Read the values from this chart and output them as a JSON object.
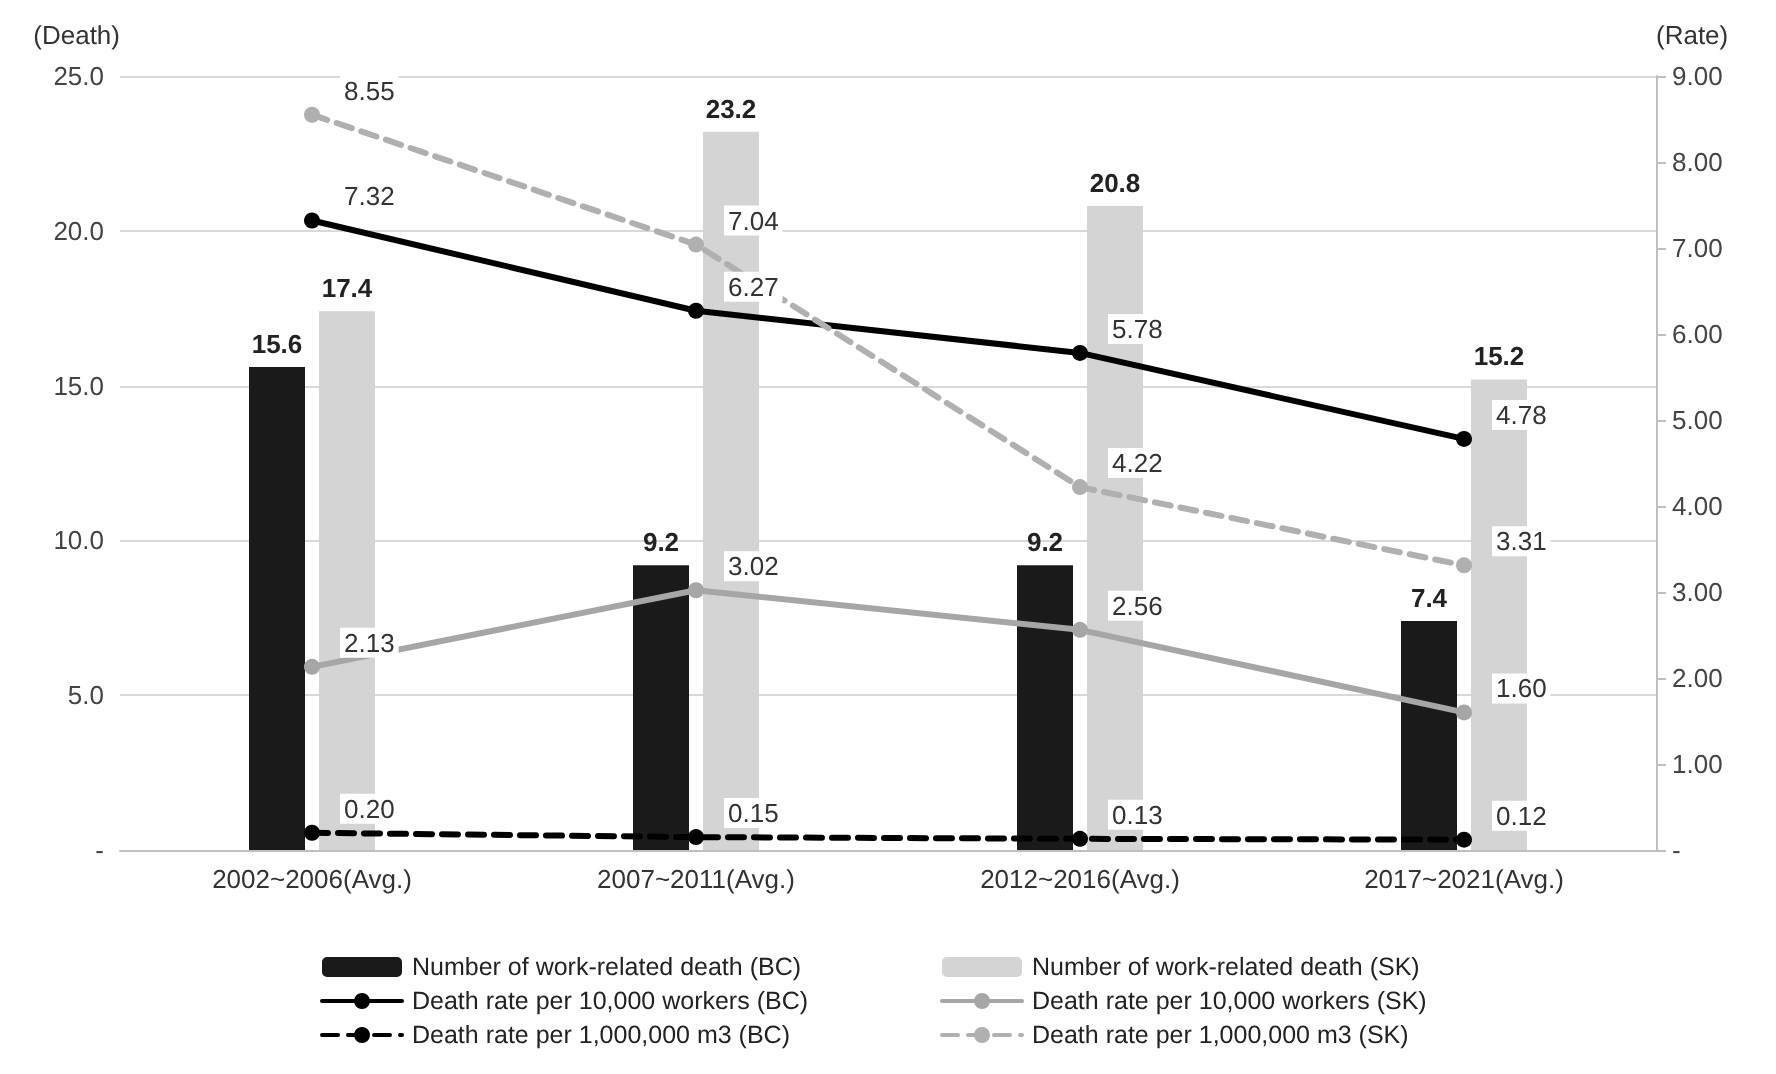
{
  "chart_data": {
    "type": "bar",
    "ylabel": "(Death)",
    "y2label": "(Rate)",
    "categories": [
      "2002~2006(Avg.)",
      "2007~2011(Avg.)",
      "2012~2016(Avg.)",
      "2017~2021(Avg.)"
    ],
    "series": [
      {
        "name": "Number of work-related death (BC)",
        "color": "#1a1a1a",
        "values": [
          15.6,
          9.2,
          9.2,
          7.4
        ],
        "value_labels": [
          "15.6",
          "9.2",
          "9.2",
          "7.4"
        ]
      },
      {
        "name": "Number of work-related death (SK)",
        "color": "#d4d4d4",
        "values": [
          17.4,
          23.2,
          20.8,
          15.2
        ],
        "value_labels": [
          "17.4",
          "23.2",
          "20.8",
          "15.2"
        ]
      },
      {
        "name": "Death rate per 10,000 workers (BC)",
        "type": "line",
        "axis": "y2",
        "color": "#000000",
        "line_style": "solid",
        "values": [
          7.32,
          6.27,
          5.78,
          4.78
        ],
        "value_labels": [
          "7.32",
          "6.27",
          "5.78",
          "4.78"
        ]
      },
      {
        "name": "Death rate per 10,000 workers (SK)",
        "type": "line",
        "axis": "y2",
        "color": "#a6a6a6",
        "line_style": "solid",
        "values": [
          2.13,
          3.02,
          2.56,
          1.6
        ],
        "value_labels": [
          "2.13",
          "3.02",
          "2.56",
          "1.60"
        ]
      },
      {
        "name": "Death rate per 1,000,000 m3 (BC)",
        "type": "line",
        "axis": "y2",
        "color": "#000000",
        "line_style": "dashed",
        "values": [
          0.2,
          0.15,
          0.13,
          0.12
        ],
        "value_labels": [
          "0.20",
          "0.15",
          "0.13",
          "0.12"
        ]
      },
      {
        "name": "Death rate per 1,000,000 m3 (SK)",
        "type": "line",
        "axis": "y2",
        "color": "#b0b0b0",
        "line_style": "dashed",
        "values": [
          8.55,
          7.04,
          4.22,
          3.31
        ],
        "value_labels": [
          "8.55",
          "7.04",
          "4.22",
          "3.31"
        ]
      }
    ],
    "ylim": [
      0,
      25
    ],
    "yticks": [
      {
        "value": 0,
        "label": "-"
      },
      {
        "value": 5,
        "label": "5.0"
      },
      {
        "value": 10,
        "label": "10.0"
      },
      {
        "value": 15,
        "label": "15.0"
      },
      {
        "value": 20,
        "label": "20.0"
      },
      {
        "value": 25,
        "label": "25.0"
      }
    ],
    "y2lim": [
      0,
      9
    ],
    "y2ticks": [
      {
        "value": 0,
        "label": "-"
      },
      {
        "value": 1,
        "label": "1.00"
      },
      {
        "value": 2,
        "label": "2.00"
      },
      {
        "value": 3,
        "label": "3.00"
      },
      {
        "value": 4,
        "label": "4.00"
      },
      {
        "value": 5,
        "label": "5.00"
      },
      {
        "value": 6,
        "label": "6.00"
      },
      {
        "value": 7,
        "label": "7.00"
      },
      {
        "value": 8,
        "label": "8.00"
      },
      {
        "value": 9,
        "label": "9.00"
      }
    ],
    "grid": "y",
    "legend": "bottom",
    "marker": "circle"
  }
}
